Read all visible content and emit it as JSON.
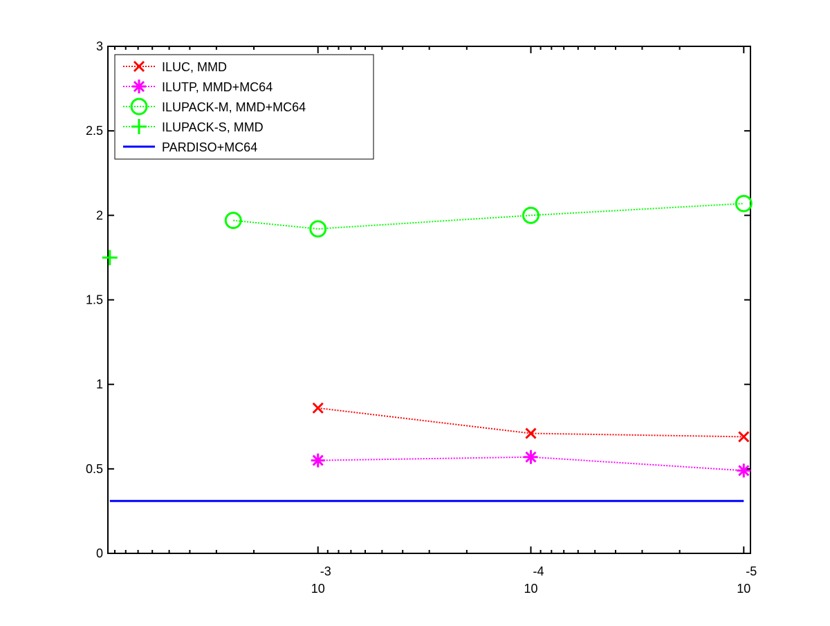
{
  "chart_data": {
    "type": "line",
    "xscale": "log",
    "xdirection": "reversed",
    "x_ticks": [
      {
        "value": 0.001,
        "base": "10",
        "exponent": "-3"
      },
      {
        "value": 0.0001,
        "base": "10",
        "exponent": "-4"
      },
      {
        "value": 1e-05,
        "base": "10",
        "exponent": "-5"
      }
    ],
    "y_ticks": [
      "0",
      "0.5",
      "1",
      "1.5",
      "2",
      "2.5",
      "3"
    ],
    "ylim": [
      0,
      3
    ],
    "xlim": [
      0.0097,
      9.3e-06
    ],
    "grid": false,
    "legend_position": "top-left",
    "series": [
      {
        "name": "ILUC, MMD",
        "color": "#ff0000",
        "marker": "x",
        "line": "dotted",
        "points": [
          {
            "x": 0.001,
            "y": 0.86
          },
          {
            "x": 0.0001,
            "y": 0.71
          },
          {
            "x": 1e-05,
            "y": 0.69
          }
        ]
      },
      {
        "name": "ILUTP, MMD+MC64",
        "color": "#ff00ff",
        "marker": "asterisk",
        "line": "dotted",
        "points": [
          {
            "x": 0.001,
            "y": 0.55
          },
          {
            "x": 0.0001,
            "y": 0.57
          },
          {
            "x": 1e-05,
            "y": 0.49
          }
        ]
      },
      {
        "name": "ILUPACK-M, MMD+MC64",
        "color": "#00ff00",
        "marker": "circle",
        "line": "dotted",
        "points": [
          {
            "x": 0.0025,
            "y": 1.97
          },
          {
            "x": 0.001,
            "y": 1.92
          },
          {
            "x": 0.0001,
            "y": 2.0
          },
          {
            "x": 1e-05,
            "y": 2.07
          }
        ]
      },
      {
        "name": "ILUPACK-S, MMD",
        "color": "#00ff00",
        "marker": "plus",
        "line": "dotted",
        "points": [
          {
            "x": 0.0095,
            "y": 1.75
          }
        ]
      },
      {
        "name": "PARDISO+MC64",
        "color": "#0000ff",
        "marker": "none",
        "line": "solid",
        "points": [
          {
            "x": 0.0095,
            "y": 0.31
          },
          {
            "x": 1e-05,
            "y": 0.31
          }
        ]
      }
    ]
  }
}
